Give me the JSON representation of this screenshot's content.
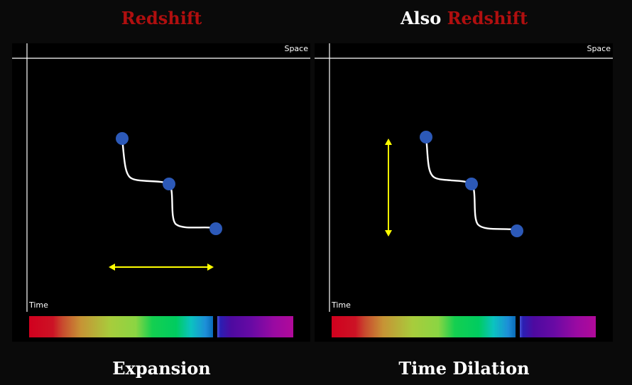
{
  "titles": {
    "left": {
      "text": "Redshift"
    },
    "right": {
      "prefix": "Also",
      "highlight": "Redshift"
    }
  },
  "captions": {
    "left": "Expansion",
    "right": "Time Dilation"
  },
  "axes": {
    "space_label": "Space",
    "time_label": "Time"
  },
  "colors": {
    "accent_red": "#b00f0f",
    "dot": "#2c59b8",
    "arrow": "#ffff00",
    "path": "#ffffff"
  }
}
